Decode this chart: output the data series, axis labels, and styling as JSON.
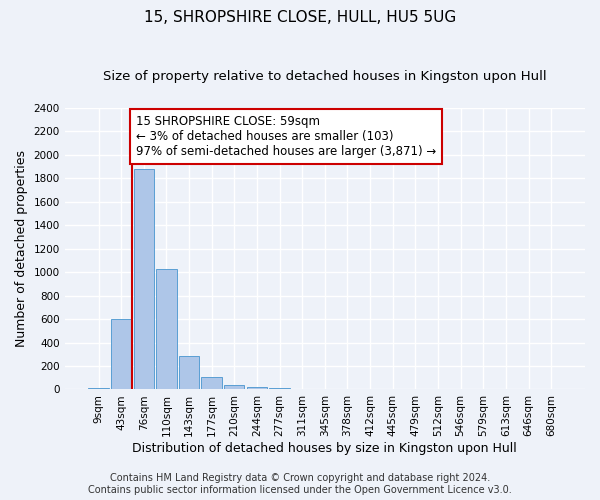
{
  "title1": "15, SHROPSHIRE CLOSE, HULL, HU5 5UG",
  "title2": "Size of property relative to detached houses in Kingston upon Hull",
  "xlabel": "Distribution of detached houses by size in Kingston upon Hull",
  "ylabel": "Number of detached properties",
  "categories": [
    "9sqm",
    "43sqm",
    "76sqm",
    "110sqm",
    "143sqm",
    "177sqm",
    "210sqm",
    "244sqm",
    "277sqm",
    "311sqm",
    "345sqm",
    "378sqm",
    "412sqm",
    "445sqm",
    "479sqm",
    "512sqm",
    "546sqm",
    "579sqm",
    "613sqm",
    "646sqm",
    "680sqm"
  ],
  "values": [
    15,
    600,
    1880,
    1030,
    285,
    110,
    40,
    20,
    15,
    5,
    0,
    0,
    0,
    0,
    0,
    0,
    0,
    0,
    0,
    0,
    0
  ],
  "bar_color": "#aec6e8",
  "bar_edge_color": "#5a9fd4",
  "vline_x": 1.5,
  "vline_color": "#cc0000",
  "annotation_text": "15 SHROPSHIRE CLOSE: 59sqm\n← 3% of detached houses are smaller (103)\n97% of semi-detached houses are larger (3,871) →",
  "annotation_box_color": "#ffffff",
  "annotation_box_edge": "#cc0000",
  "footer_line1": "Contains HM Land Registry data © Crown copyright and database right 2024.",
  "footer_line2": "Contains public sector information licensed under the Open Government Licence v3.0.",
  "ylim": [
    0,
    2400
  ],
  "yticks": [
    0,
    200,
    400,
    600,
    800,
    1000,
    1200,
    1400,
    1600,
    1800,
    2000,
    2200,
    2400
  ],
  "bg_color": "#eef2f9",
  "grid_color": "#ffffff",
  "title1_fontsize": 11,
  "title2_fontsize": 9.5,
  "xlabel_fontsize": 9,
  "ylabel_fontsize": 9,
  "tick_fontsize": 7.5,
  "annot_fontsize": 8.5,
  "footer_fontsize": 7
}
